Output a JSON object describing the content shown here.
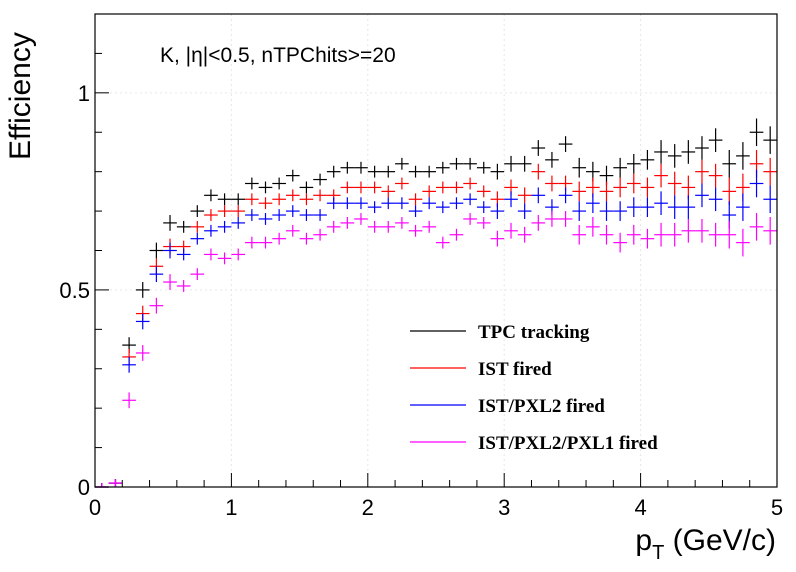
{
  "chart_data": {
    "type": "scatter",
    "annotation": "K, |η|<0.5, nTPChits>=20",
    "xlabel_main": "p",
    "xlabel_sub": "T",
    "xlabel_rest": " (GeV/c)",
    "ylabel": "Efficiency",
    "xlim": [
      0,
      5
    ],
    "ylim": [
      0,
      1.2
    ],
    "x_ticks": [
      {
        "v": 0,
        "label": "0"
      },
      {
        "v": 1,
        "label": "1"
      },
      {
        "v": 2,
        "label": "2"
      },
      {
        "v": 3,
        "label": "3"
      },
      {
        "v": 4,
        "label": "4"
      },
      {
        "v": 5,
        "label": "5"
      }
    ],
    "y_ticks": [
      {
        "v": 0,
        "label": "0"
      },
      {
        "v": 0.5,
        "label": "0.5"
      },
      {
        "v": 1,
        "label": "1"
      }
    ],
    "grid": true,
    "legend_position": "bottom-right",
    "x": [
      0.05,
      0.15,
      0.25,
      0.35,
      0.45,
      0.55,
      0.65,
      0.75,
      0.85,
      0.95,
      1.05,
      1.15,
      1.25,
      1.35,
      1.45,
      1.55,
      1.65,
      1.75,
      1.85,
      1.95,
      2.05,
      2.15,
      2.25,
      2.35,
      2.45,
      2.55,
      2.65,
      2.75,
      2.85,
      2.95,
      3.05,
      3.15,
      3.25,
      3.35,
      3.45,
      3.55,
      3.65,
      3.75,
      3.85,
      3.95,
      4.05,
      4.15,
      4.25,
      4.35,
      4.45,
      4.55,
      4.65,
      4.75,
      4.85,
      4.95
    ],
    "series": [
      {
        "name": "TPC tracking",
        "color": "#000000",
        "values": [
          0.0,
          0.01,
          0.36,
          0.5,
          0.6,
          0.67,
          0.66,
          0.7,
          0.74,
          0.73,
          0.73,
          0.77,
          0.76,
          0.77,
          0.79,
          0.76,
          0.78,
          0.8,
          0.81,
          0.81,
          0.8,
          0.8,
          0.82,
          0.8,
          0.8,
          0.81,
          0.82,
          0.82,
          0.81,
          0.8,
          0.82,
          0.82,
          0.86,
          0.83,
          0.87,
          0.81,
          0.8,
          0.79,
          0.81,
          0.82,
          0.83,
          0.85,
          0.84,
          0.85,
          0.86,
          0.88,
          0.82,
          0.84,
          0.9,
          0.88
        ],
        "errors": [
          0.01,
          0.01,
          0.02,
          0.02,
          0.02,
          0.02,
          0.015,
          0.015,
          0.015,
          0.015,
          0.015,
          0.015,
          0.015,
          0.015,
          0.015,
          0.015,
          0.015,
          0.015,
          0.015,
          0.015,
          0.015,
          0.015,
          0.015,
          0.015,
          0.015,
          0.015,
          0.015,
          0.015,
          0.015,
          0.02,
          0.02,
          0.02,
          0.02,
          0.02,
          0.02,
          0.025,
          0.025,
          0.025,
          0.025,
          0.025,
          0.025,
          0.03,
          0.03,
          0.03,
          0.03,
          0.03,
          0.035,
          0.035,
          0.035,
          0.035
        ]
      },
      {
        "name": "IST fired",
        "color": "#ff0000",
        "values": [
          0.0,
          0.01,
          0.33,
          0.44,
          0.56,
          0.61,
          0.61,
          0.66,
          0.69,
          0.7,
          0.7,
          0.73,
          0.72,
          0.73,
          0.74,
          0.73,
          0.74,
          0.74,
          0.76,
          0.76,
          0.76,
          0.75,
          0.77,
          0.73,
          0.75,
          0.76,
          0.76,
          0.77,
          0.75,
          0.73,
          0.76,
          0.74,
          0.8,
          0.77,
          0.77,
          0.75,
          0.76,
          0.75,
          0.76,
          0.77,
          0.76,
          0.79,
          0.77,
          0.76,
          0.8,
          0.79,
          0.75,
          0.76,
          0.82,
          0.8
        ],
        "errors": [
          0.01,
          0.01,
          0.02,
          0.02,
          0.02,
          0.02,
          0.015,
          0.015,
          0.015,
          0.015,
          0.015,
          0.015,
          0.015,
          0.015,
          0.015,
          0.015,
          0.015,
          0.015,
          0.015,
          0.015,
          0.015,
          0.015,
          0.015,
          0.015,
          0.015,
          0.015,
          0.015,
          0.015,
          0.015,
          0.02,
          0.02,
          0.02,
          0.02,
          0.02,
          0.02,
          0.025,
          0.025,
          0.025,
          0.025,
          0.025,
          0.025,
          0.03,
          0.03,
          0.03,
          0.03,
          0.03,
          0.035,
          0.035,
          0.035,
          0.035
        ]
      },
      {
        "name": "IST/PXL2 fired",
        "color": "#0000ff",
        "values": [
          0.0,
          0.01,
          0.31,
          0.42,
          0.54,
          0.6,
          0.59,
          0.63,
          0.65,
          0.66,
          0.67,
          0.69,
          0.68,
          0.69,
          0.7,
          0.69,
          0.69,
          0.72,
          0.72,
          0.72,
          0.71,
          0.72,
          0.72,
          0.7,
          0.72,
          0.71,
          0.72,
          0.73,
          0.71,
          0.7,
          0.73,
          0.7,
          0.74,
          0.71,
          0.74,
          0.7,
          0.72,
          0.7,
          0.7,
          0.71,
          0.71,
          0.72,
          0.71,
          0.71,
          0.74,
          0.73,
          0.69,
          0.71,
          0.77,
          0.73
        ],
        "errors": [
          0.01,
          0.01,
          0.02,
          0.02,
          0.02,
          0.02,
          0.015,
          0.015,
          0.015,
          0.015,
          0.015,
          0.015,
          0.015,
          0.015,
          0.015,
          0.015,
          0.015,
          0.015,
          0.015,
          0.015,
          0.015,
          0.015,
          0.015,
          0.015,
          0.015,
          0.015,
          0.015,
          0.015,
          0.015,
          0.02,
          0.02,
          0.02,
          0.02,
          0.02,
          0.02,
          0.025,
          0.025,
          0.025,
          0.025,
          0.025,
          0.025,
          0.03,
          0.03,
          0.03,
          0.03,
          0.03,
          0.035,
          0.035,
          0.035,
          0.035
        ]
      },
      {
        "name": "IST/PXL2/PXL1 fired",
        "color": "#ff00ff",
        "values": [
          0.0,
          0.01,
          0.22,
          0.34,
          0.46,
          0.52,
          0.51,
          0.54,
          0.59,
          0.58,
          0.59,
          0.62,
          0.62,
          0.63,
          0.65,
          0.63,
          0.64,
          0.66,
          0.67,
          0.68,
          0.66,
          0.66,
          0.67,
          0.65,
          0.66,
          0.62,
          0.64,
          0.68,
          0.67,
          0.63,
          0.65,
          0.64,
          0.67,
          0.68,
          0.68,
          0.64,
          0.66,
          0.64,
          0.62,
          0.64,
          0.63,
          0.64,
          0.64,
          0.65,
          0.65,
          0.64,
          0.64,
          0.62,
          0.66,
          0.65
        ],
        "errors": [
          0.01,
          0.01,
          0.02,
          0.02,
          0.02,
          0.02,
          0.015,
          0.015,
          0.015,
          0.015,
          0.015,
          0.015,
          0.015,
          0.015,
          0.015,
          0.015,
          0.015,
          0.015,
          0.015,
          0.015,
          0.015,
          0.015,
          0.015,
          0.015,
          0.015,
          0.015,
          0.015,
          0.015,
          0.015,
          0.02,
          0.02,
          0.02,
          0.02,
          0.02,
          0.02,
          0.025,
          0.025,
          0.025,
          0.025,
          0.025,
          0.025,
          0.03,
          0.03,
          0.03,
          0.03,
          0.03,
          0.035,
          0.035,
          0.035,
          0.035
        ]
      }
    ]
  }
}
